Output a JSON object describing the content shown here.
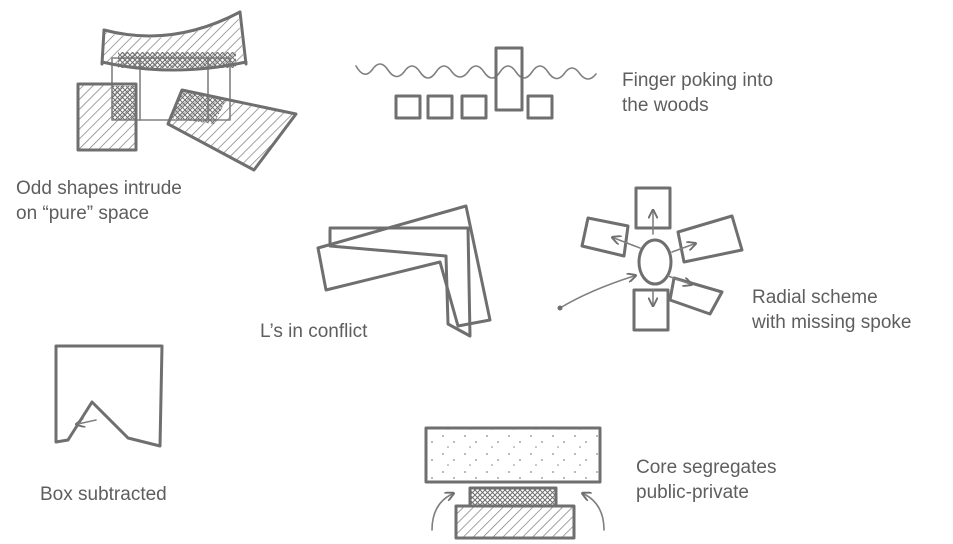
{
  "captions": {
    "odd_shapes": "Odd shapes intrude\non “pure” space",
    "finger": "Finger poking into\nthe woods",
    "ls_conflict": "L’s in conflict",
    "radial": "Radial scheme\nwith missing spoke",
    "box_subtracted": "Box subtracted",
    "core": "Core segregates\npublic-private"
  },
  "colors": {
    "line": "#6f6f6f",
    "text": "#5e5e5e",
    "background": "#ffffff"
  }
}
